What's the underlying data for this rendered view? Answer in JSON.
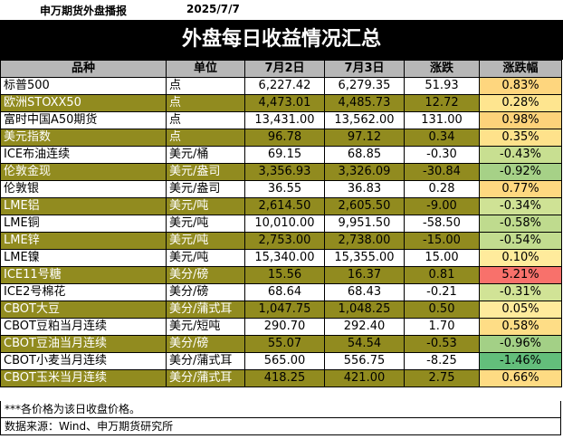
{
  "header": {
    "brand": "申万期货外盘播报",
    "date": "2025/7/7"
  },
  "title": "外盘每日收益情况汇总",
  "columns": [
    "品种",
    "单位",
    "7月2日",
    "7月3日",
    "涨跌",
    "涨跌幅"
  ],
  "colors": {
    "olive_row": "#918b1f",
    "up_light": "#ffe08c",
    "up_strong": "#f47c7c",
    "down_light": "#d6e4a4",
    "down_strong": "#63be7b"
  },
  "rows": [
    {
      "name": "标普500",
      "unit": "点",
      "d1": "6,227.42",
      "d2": "6,279.35",
      "chg": "51.93",
      "pct": "0.83%",
      "olive": false,
      "pct_color": "#fed67e"
    },
    {
      "name": "欧洲STOXX50",
      "unit": "点",
      "d1": "4,473.01",
      "d2": "4,485.73",
      "chg": "12.72",
      "pct": "0.28%",
      "olive": true,
      "pct_color": "#fee58f"
    },
    {
      "name": "富时中国A50期货",
      "unit": "点",
      "d1": "13,431.00",
      "d2": "13,562.00",
      "chg": "131.00",
      "pct": "0.98%",
      "olive": false,
      "pct_color": "#fdd27a"
    },
    {
      "name": "美元指数",
      "unit": "点",
      "d1": "96.78",
      "d2": "97.12",
      "chg": "0.34",
      "pct": "0.35%",
      "olive": true,
      "pct_color": "#fee28b"
    },
    {
      "name": "ICE布油连续",
      "unit": "美元/桶",
      "d1": "69.15",
      "d2": "68.85",
      "chg": "-0.30",
      "pct": "-0.43%",
      "olive": false,
      "pct_color": "#c8df91"
    },
    {
      "name": "伦敦金现",
      "unit": "美元/盎司",
      "d1": "3,356.93",
      "d2": "3,326.09",
      "chg": "-30.84",
      "pct": "-0.92%",
      "olive": true,
      "pct_color": "#a6d187"
    },
    {
      "name": "伦敦银",
      "unit": "美元/盎司",
      "d1": "36.55",
      "d2": "36.83",
      "chg": "0.28",
      "pct": "0.77%",
      "olive": false,
      "pct_color": "#fed880"
    },
    {
      "name": "LME铝",
      "unit": "美元/吨",
      "d1": "2,614.50",
      "d2": "2,605.50",
      "chg": "-9.00",
      "pct": "-0.34%",
      "olive": true,
      "pct_color": "#cfe295"
    },
    {
      "name": "LME铜",
      "unit": "美元/吨",
      "d1": "10,010.00",
      "d2": "9,951.50",
      "chg": "-58.50",
      "pct": "-0.58%",
      "olive": false,
      "pct_color": "#bfdb8e"
    },
    {
      "name": "LME锌",
      "unit": "美元/吨",
      "d1": "2,753.00",
      "d2": "2,738.00",
      "chg": "-15.00",
      "pct": "-0.54%",
      "olive": true,
      "pct_color": "#c2dc8f"
    },
    {
      "name": "LME镍",
      "unit": "美元/吨",
      "d1": "15,340.00",
      "d2": "15,355.00",
      "chg": "15.00",
      "pct": "0.10%",
      "olive": false,
      "pct_color": "#ffeb9c"
    },
    {
      "name": "ICE11号糖",
      "unit": "美分/磅",
      "d1": "15.56",
      "d2": "16.37",
      "chg": "0.81",
      "pct": "5.21%",
      "olive": true,
      "pct_color": "#f8716b"
    },
    {
      "name": "ICE2号棉花",
      "unit": "美分/磅",
      "d1": "68.64",
      "d2": "68.43",
      "chg": "-0.21",
      "pct": "-0.31%",
      "olive": false,
      "pct_color": "#d1e396"
    },
    {
      "name": "CBOT大豆",
      "unit": "美分/蒲式耳",
      "d1": "1,047.75",
      "d2": "1,048.25",
      "chg": "0.50",
      "pct": "0.05%",
      "olive": true,
      "pct_color": "#ffeb9c"
    },
    {
      "name": "CBOT豆粕当月连续",
      "unit": "美元/短吨",
      "d1": "290.70",
      "d2": "292.40",
      "chg": "1.70",
      "pct": "0.58%",
      "olive": false,
      "pct_color": "#fedd86"
    },
    {
      "name": "CBOT豆油当月连续",
      "unit": "美分/磅",
      "d1": "55.07",
      "d2": "54.54",
      "chg": "-0.53",
      "pct": "-0.96%",
      "olive": true,
      "pct_color": "#a3d086"
    },
    {
      "name": "CBOT小麦当月连续",
      "unit": "美分/蒲式耳",
      "d1": "565.00",
      "d2": "556.75",
      "chg": "-8.25",
      "pct": "-1.46%",
      "olive": false,
      "pct_color": "#63be7b"
    },
    {
      "name": "CBOT玉米当月连续",
      "unit": "美分/蒲式耳",
      "d1": "418.25",
      "d2": "421.00",
      "chg": "2.75",
      "pct": "0.66%",
      "olive": true,
      "pct_color": "#fedb83"
    }
  ],
  "footer": {
    "note": "***各价格为该日收盘价格。",
    "source": "数据来源：Wind、申万期货研究所"
  }
}
